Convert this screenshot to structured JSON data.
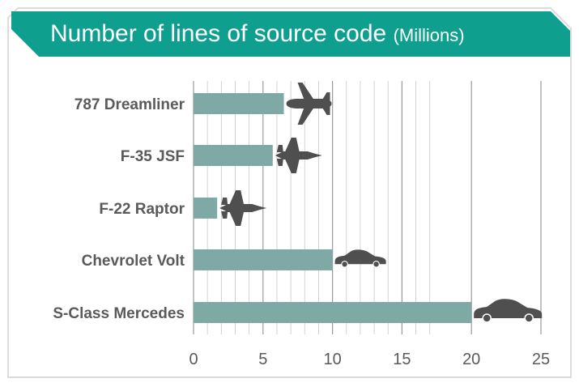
{
  "title": {
    "main": "Number of lines of source code",
    "unit": "(Millions)"
  },
  "colors": {
    "banner": "#0f9f8f",
    "bar": "#7fa9a4",
    "grid": "#c8c8c8",
    "label": "#5a5a5a",
    "icon": "#4f4f4f"
  },
  "chart_data": {
    "type": "bar",
    "orientation": "horizontal",
    "categories": [
      "787 Dreamliner",
      "F-35 JSF",
      "F-22 Raptor",
      "Chevrolet Volt",
      "S-Class Mercedes"
    ],
    "values": [
      6.5,
      5.7,
      1.7,
      10,
      20
    ],
    "icons": [
      "airliner-icon",
      "fighter-jet-icon",
      "fighter-jet-icon",
      "car-icon",
      "car-icon"
    ],
    "xlim": [
      0,
      25
    ],
    "xticks": [
      "0",
      "5",
      "10",
      "15",
      "20",
      "25"
    ],
    "grid": "vertical",
    "title": "Number of lines of source code (Millions)"
  }
}
